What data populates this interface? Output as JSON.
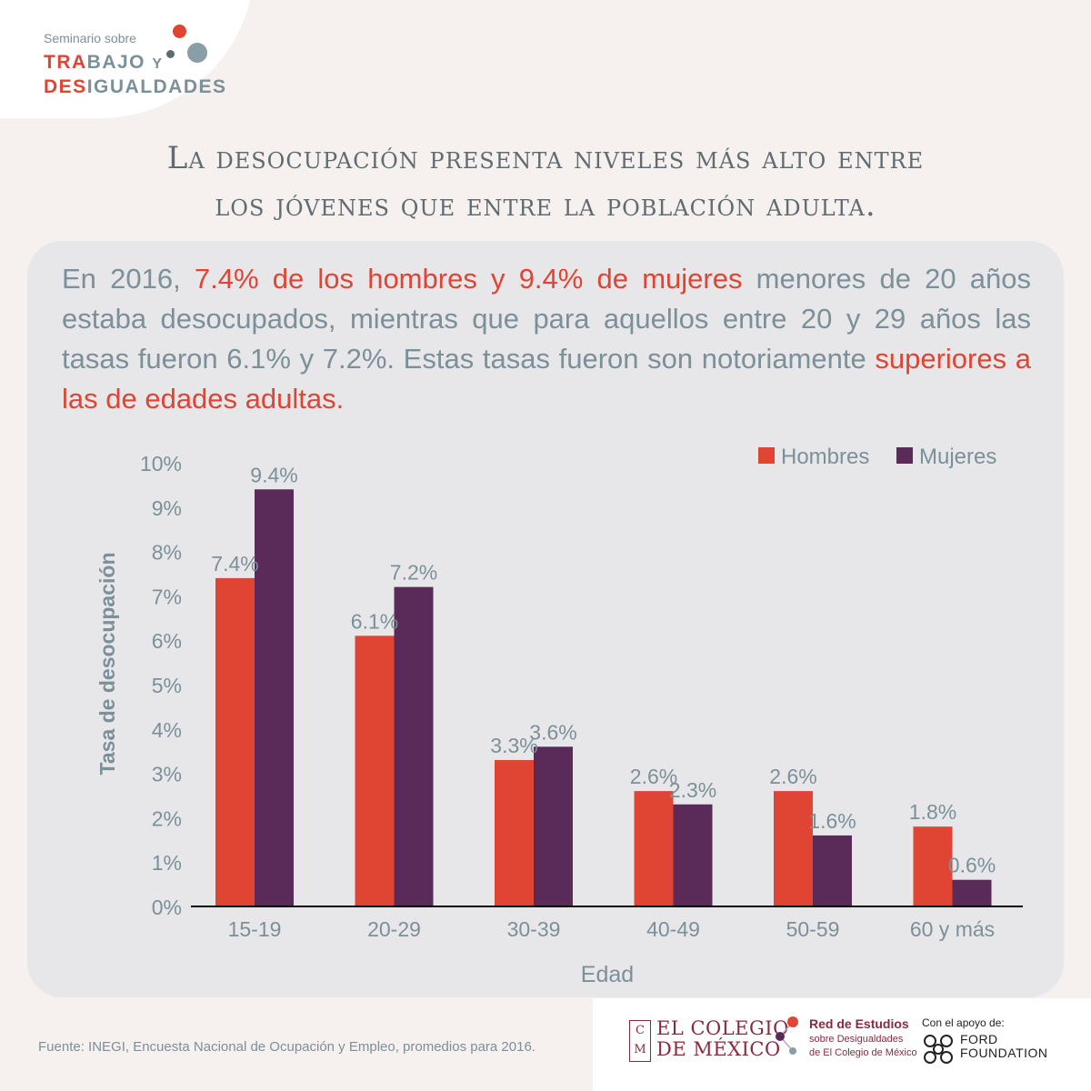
{
  "logo": {
    "line1": "Seminario sobre",
    "line2_red": "TRA",
    "line2_grey": "BAJO",
    "line2_y": "Y",
    "line3_red": "DES",
    "line3_grey": "IGUALDADES",
    "colors": {
      "red": "#e04433",
      "grey": "#7b9099",
      "dark": "#5f6d72"
    }
  },
  "headline": {
    "line1": "La desocupación presenta niveles más alto entre",
    "line2": "los jóvenes que entre la población adulta."
  },
  "intro": {
    "p1": "En 2016, ",
    "h1": "7.4% de los hombres y 9.4% de mujeres",
    "p2": " menores de 20 años estaba desocupados, mientras que para aquellos entre 20 y 29 años las tasas fueron 6.1% y 7.2%. Estas tasas fueron son notoriamente ",
    "h2": "superiores a las de edades adultas."
  },
  "chart_data": {
    "type": "bar",
    "categories": [
      "15-19",
      "20-29",
      "30-39",
      "40-49",
      "50-59",
      "60 y más"
    ],
    "series": [
      {
        "name": "Hombres",
        "color": "#e04433",
        "values": [
          7.4,
          6.1,
          3.3,
          2.6,
          2.6,
          1.8
        ],
        "labels": [
          "7.4%",
          "6.1%",
          "3.3%",
          "2.6%",
          "2.6%",
          "1.8%"
        ]
      },
      {
        "name": "Mujeres",
        "color": "#5a2a59",
        "values": [
          9.4,
          7.2,
          3.6,
          2.3,
          1.6,
          0.6
        ],
        "labels": [
          "9.4%",
          "7.2%",
          "3.6%",
          "2.3%",
          "1.6%",
          "0.6%"
        ]
      }
    ],
    "xlabel": "Edad",
    "ylabel": "Tasa de desocupación",
    "ylim": [
      0,
      10
    ],
    "yticks": [
      "0%",
      "1%",
      "2%",
      "3%",
      "4%",
      "5%",
      "6%",
      "7%",
      "8%",
      "9%",
      "10%"
    ],
    "legend_position": "top-right",
    "grid": false
  },
  "footer": {
    "source": "Fuente: INEGI, Encuesta Nacional de Ocupación y Empleo, promedios para 2016.",
    "colmex_mark_top": "C",
    "colmex_mark_bottom": "M",
    "colmex_line1": "EL COLEGIO",
    "colmex_line2": "DE MÉXICO",
    "red_title": "Red de Estudios",
    "red_sub": "sobre Desigualdades",
    "red_sub2": "de El Colegio de México",
    "ford_label": "Con el apoyo de:",
    "ford_line1": "FORD",
    "ford_line2": "FOUNDATION"
  }
}
